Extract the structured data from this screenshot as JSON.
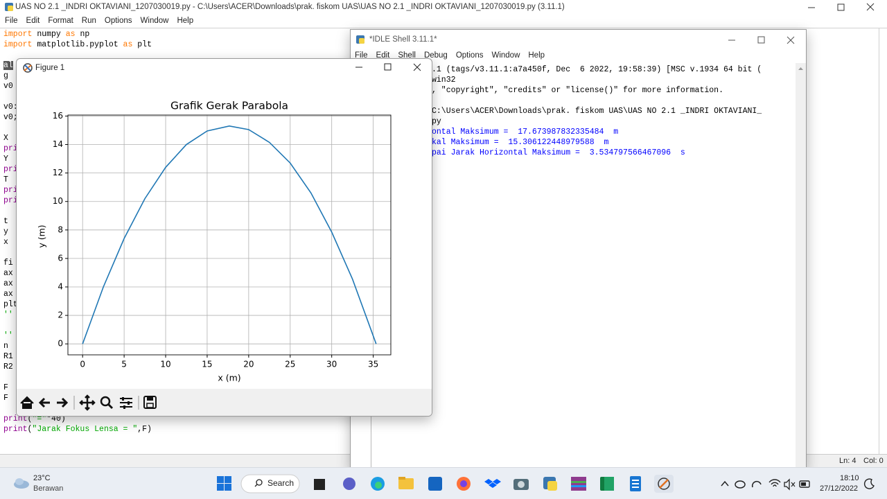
{
  "editor": {
    "title": "UAS NO 2.1 _INDRI OKTAVIANI_1207030019.py - C:\\Users\\ACER\\Downloads\\prak. fiskom UAS\\UAS NO 2.1 _INDRI OKTAVIANI_1207030019.py (3.11.1)",
    "menu": [
      "File",
      "Edit",
      "Format",
      "Run",
      "Options",
      "Window",
      "Help"
    ],
    "code": [
      [
        {
          "text": "import",
          "color": "#ff7700"
        },
        {
          "text": " numpy "
        },
        {
          "text": "as",
          "color": "#ff7700"
        },
        {
          "text": " np"
        }
      ],
      [
        {
          "text": "import",
          "color": "#ff7700"
        },
        {
          "text": " matplotlib.pyplot "
        },
        {
          "text": "as",
          "color": "#ff7700"
        },
        {
          "text": " plt"
        }
      ],
      [
        {
          "text": "al",
          "color": "#ffffff",
          "background": "#5a5a5a"
        }
      ],
      [
        {
          "text": "g"
        }
      ],
      [
        {
          "text": "v0"
        }
      ],
      [
        {
          "text": "v0:"
        }
      ],
      [
        {
          "text": "v0;"
        }
      ],
      [
        {
          "text": "X"
        }
      ],
      [
        {
          "text": "pri",
          "color": "#900090"
        }
      ],
      [
        {
          "text": "Y"
        }
      ],
      [
        {
          "text": "pri",
          "color": "#900090"
        }
      ],
      [
        {
          "text": "T"
        }
      ],
      [
        {
          "text": "pri",
          "color": "#900090"
        }
      ],
      [
        {
          "text": "pri",
          "color": "#900090"
        }
      ],
      [
        {
          "text": "t"
        }
      ],
      [
        {
          "text": "y"
        }
      ],
      [
        {
          "text": "x"
        }
      ],
      [
        {
          "text": "fi"
        }
      ],
      [
        {
          "text": "ax"
        }
      ],
      [
        {
          "text": "ax"
        }
      ],
      [
        {
          "text": "ax"
        }
      ],
      [
        {
          "text": "plt"
        }
      ],
      [
        {
          "text": "''",
          "color": "#00aa00"
        }
      ],
      [
        {
          "text": "''",
          "color": "#00aa00"
        }
      ],
      [
        {
          "text": "n"
        }
      ],
      [
        {
          "text": "R1"
        }
      ],
      [
        {
          "text": "R2"
        }
      ],
      [
        {
          "text": "F"
        }
      ],
      [
        {
          "text": "F"
        }
      ],
      [
        {
          "text": "print",
          "color": "#900090"
        },
        {
          "text": "("
        },
        {
          "text": "\"=\"",
          "color": "#00aa00"
        },
        {
          "text": "*40)"
        }
      ],
      [
        {
          "text": "print",
          "color": "#900090"
        },
        {
          "text": "("
        },
        {
          "text": "\"Jarak Fokus Lensa = \"",
          "color": "#00aa00"
        },
        {
          "text": ",F)"
        }
      ]
    ],
    "status": {
      "line": "Ln: 4",
      "col": "Col: 0"
    }
  },
  "shell": {
    "title": "*IDLE Shell 3.11.1*",
    "menu": [
      "File",
      "Edit",
      "Shell",
      "Debug",
      "Options",
      "Window",
      "Help"
    ],
    "output": [
      {
        "text": ".1 (tags/v3.11.1:a7a450f, Dec  6 2022, 19:58:39) [MSC v.1934 64 bit ("
      },
      {
        "text": "win32"
      },
      {
        "text": ", \"copyright\", \"credits\" or \"license()\" for more information."
      },
      {
        "text": "C:\\Users\\ACER\\Downloads\\prak. fiskom UAS\\UAS NO 2.1 _INDRI OKTAVIANI_"
      },
      {
        "text": "py"
      },
      {
        "text": "ontal Maksimum =  17.673987832335484  m",
        "color": "#0000ff"
      },
      {
        "text": "kal Maksimum =  15.306122448979588  m",
        "color": "#0000ff"
      },
      {
        "text": "pai Jarak Horizontal Maksimum =  3.534797566467096  s",
        "color": "#0000ff"
      }
    ]
  },
  "figure": {
    "title": "Figure 1"
  },
  "chart_data": {
    "type": "line",
    "title": "Grafik Gerak Parabola",
    "x_label": "x (m)",
    "y_label": "y (m)",
    "x": [
      0,
      2.5,
      5,
      7.5,
      10,
      12.5,
      15,
      17.67,
      20,
      22.5,
      25,
      27.5,
      30,
      32.5,
      35.35
    ],
    "values": [
      0,
      4.0,
      7.4,
      10.2,
      12.4,
      14.0,
      14.95,
      15.3,
      15.05,
      14.15,
      12.7,
      10.6,
      7.85,
      4.55,
      0
    ],
    "color": "#1f77b4",
    "xlim": [
      -1.77,
      37.12
    ],
    "ylim": [
      -0.77,
      16.07
    ],
    "xticks": [
      0,
      5,
      10,
      15,
      20,
      25,
      30,
      35
    ],
    "yticks": [
      0,
      2,
      4,
      6,
      8,
      10,
      12,
      14,
      16
    ],
    "grid": true
  },
  "taskbar": {
    "temperature": "23°C",
    "weather": "Berawan",
    "search": "Search",
    "time": "18:10",
    "date": "27/12/2022"
  }
}
